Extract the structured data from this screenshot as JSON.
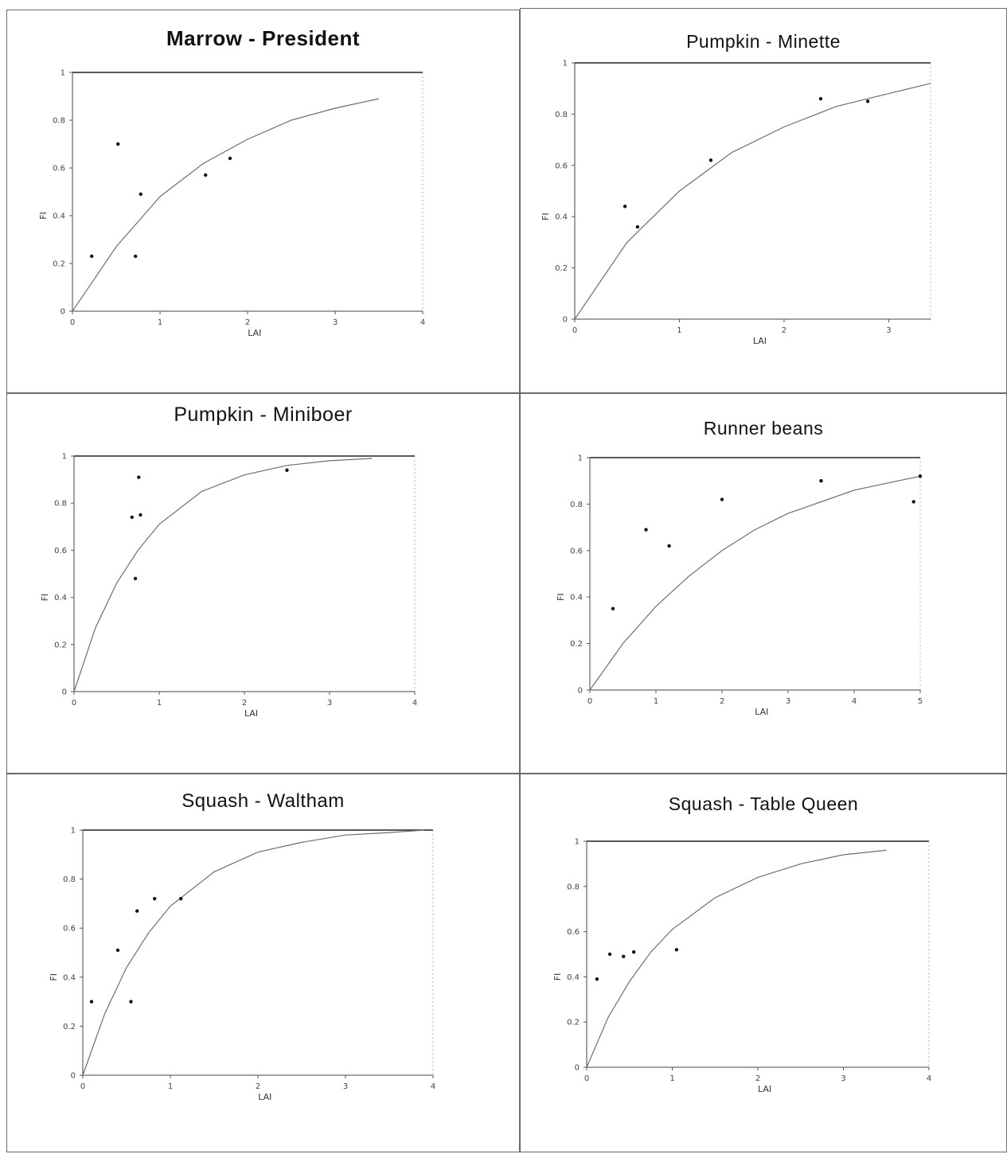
{
  "chart_data": [
    {
      "type": "scatter",
      "title": "Marrow - President",
      "xlabel": "LAI",
      "ylabel": "FI",
      "xlim": [
        0,
        4
      ],
      "ylim": [
        0,
        1
      ],
      "xticks": [
        0,
        1,
        2,
        3,
        4
      ],
      "yticks": [
        0,
        0.2,
        0.4,
        0.6,
        0.8,
        1
      ],
      "points": {
        "x": [
          0.22,
          0.52,
          0.72,
          0.78,
          1.52,
          1.8
        ],
        "y": [
          0.23,
          0.7,
          0.23,
          0.49,
          0.57,
          0.64
        ]
      },
      "fit_curve": {
        "x": [
          0,
          0.5,
          1.0,
          1.5,
          2.0,
          2.5,
          3.0,
          3.5
        ],
        "y": [
          0,
          0.27,
          0.48,
          0.62,
          0.72,
          0.8,
          0.85,
          0.89
        ]
      },
      "grid": false
    },
    {
      "type": "scatter",
      "title": "Pumpkin - Minette",
      "xlabel": "LAI",
      "ylabel": "FI",
      "xlim": [
        0,
        3.4
      ],
      "ylim": [
        0,
        1
      ],
      "xticks": [
        0,
        1,
        2,
        3
      ],
      "yticks": [
        0,
        0.2,
        0.4,
        0.6,
        0.8,
        1
      ],
      "points": {
        "x": [
          0.48,
          0.6,
          1.3,
          2.35,
          2.8
        ],
        "y": [
          0.44,
          0.36,
          0.62,
          0.86,
          0.85
        ]
      },
      "fit_curve": {
        "x": [
          0,
          0.5,
          1.0,
          1.5,
          2.0,
          2.5,
          3.0,
          3.4
        ],
        "y": [
          0,
          0.3,
          0.5,
          0.65,
          0.75,
          0.83,
          0.88,
          0.92
        ]
      },
      "grid": false
    },
    {
      "type": "scatter",
      "title": "Pumpkin - Miniboer",
      "xlabel": "LAI",
      "ylabel": "FI",
      "xlim": [
        0,
        4
      ],
      "ylim": [
        0,
        1
      ],
      "xticks": [
        0,
        1,
        2,
        3,
        4
      ],
      "yticks": [
        0,
        0.2,
        0.4,
        0.6,
        0.8,
        1
      ],
      "points": {
        "x": [
          0.68,
          0.72,
          0.76,
          0.78,
          2.5
        ],
        "y": [
          0.74,
          0.48,
          0.91,
          0.75,
          0.94
        ]
      },
      "fit_curve": {
        "x": [
          0,
          0.25,
          0.5,
          0.75,
          1.0,
          1.5,
          2.0,
          2.5,
          3.0,
          3.5
        ],
        "y": [
          0,
          0.27,
          0.46,
          0.6,
          0.71,
          0.85,
          0.92,
          0.96,
          0.98,
          0.99
        ]
      },
      "grid": false
    },
    {
      "type": "scatter",
      "title": "Runner beans",
      "xlabel": "LAI",
      "ylabel": "FI",
      "xlim": [
        0,
        5
      ],
      "ylim": [
        0,
        1
      ],
      "xticks": [
        0,
        1,
        2,
        3,
        4,
        5
      ],
      "yticks": [
        0,
        0.2,
        0.4,
        0.6,
        0.8,
        1
      ],
      "points": {
        "x": [
          0.35,
          0.85,
          1.2,
          2.0,
          3.5,
          4.9,
          5.0
        ],
        "y": [
          0.35,
          0.69,
          0.62,
          0.82,
          0.9,
          0.81,
          0.92
        ]
      },
      "fit_curve": {
        "x": [
          0,
          0.5,
          1.0,
          1.5,
          2.0,
          2.5,
          3.0,
          3.5,
          4.0,
          4.5,
          5.0
        ],
        "y": [
          0,
          0.2,
          0.36,
          0.49,
          0.6,
          0.69,
          0.76,
          0.81,
          0.86,
          0.89,
          0.92
        ]
      },
      "grid": false
    },
    {
      "type": "scatter",
      "title": "Squash - Waltham",
      "xlabel": "LAI",
      "ylabel": "FI",
      "xlim": [
        0,
        4
      ],
      "ylim": [
        0,
        1
      ],
      "xticks": [
        0,
        1,
        2,
        3,
        4
      ],
      "yticks": [
        0,
        0.2,
        0.4,
        0.6,
        0.8,
        1
      ],
      "points": {
        "x": [
          0.1,
          0.4,
          0.55,
          0.62,
          0.82,
          1.12
        ],
        "y": [
          0.3,
          0.51,
          0.3,
          0.67,
          0.72,
          0.72
        ]
      },
      "fit_curve": {
        "x": [
          0,
          0.25,
          0.5,
          0.75,
          1.0,
          1.5,
          2.0,
          2.5,
          3.0,
          3.5,
          3.9
        ],
        "y": [
          0,
          0.25,
          0.44,
          0.58,
          0.69,
          0.83,
          0.91,
          0.95,
          0.98,
          0.99,
          1.0
        ]
      },
      "grid": false
    },
    {
      "type": "scatter",
      "title": "Squash - Table Queen",
      "xlabel": "LAI",
      "ylabel": "FI",
      "xlim": [
        0,
        4
      ],
      "ylim": [
        0,
        1
      ],
      "xticks": [
        0,
        1,
        2,
        3,
        4
      ],
      "yticks": [
        0,
        0.2,
        0.4,
        0.6,
        0.8,
        1
      ],
      "points": {
        "x": [
          0.12,
          0.27,
          0.43,
          0.55,
          1.05
        ],
        "y": [
          0.39,
          0.5,
          0.49,
          0.51,
          0.52
        ]
      },
      "fit_curve": {
        "x": [
          0,
          0.25,
          0.5,
          0.75,
          1.0,
          1.5,
          2.0,
          2.5,
          3.0,
          3.5
        ],
        "y": [
          0,
          0.22,
          0.38,
          0.51,
          0.61,
          0.75,
          0.84,
          0.9,
          0.94,
          0.96
        ]
      },
      "grid": false
    }
  ]
}
